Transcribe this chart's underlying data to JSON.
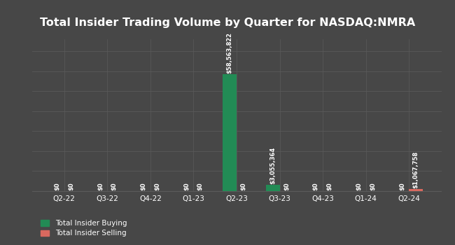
{
  "title": "Total Insider Trading Volume by Quarter for NASDAQ:NMRA",
  "quarters": [
    "Q2-22",
    "Q3-22",
    "Q4-22",
    "Q1-23",
    "Q2-23",
    "Q3-23",
    "Q4-23",
    "Q1-24",
    "Q2-24"
  ],
  "buying": [
    0,
    0,
    0,
    0,
    58563822,
    3055364,
    0,
    0,
    0
  ],
  "selling": [
    0,
    0,
    0,
    0,
    0,
    0,
    0,
    0,
    1067758
  ],
  "buying_labels": [
    "$0",
    "$0",
    "$0",
    "$0",
    "$58,563,822",
    "$3,055,364",
    "$0",
    "$0",
    "$0"
  ],
  "selling_labels": [
    "$0",
    "$0",
    "$0",
    "$0",
    "$0",
    "$0",
    "$0",
    "$0",
    "$1,067,758"
  ],
  "buying_color": "#228B55",
  "selling_color": "#d9695f",
  "background_color": "#474747",
  "plot_bg_color": "#474747",
  "text_color": "#ffffff",
  "grid_color": "#5a5a5a",
  "bar_width": 0.32,
  "title_fontsize": 11.5,
  "label_fontsize": 6.0,
  "tick_fontsize": 7.5,
  "legend_fontsize": 7.5,
  "ylim_factor": 1.3
}
